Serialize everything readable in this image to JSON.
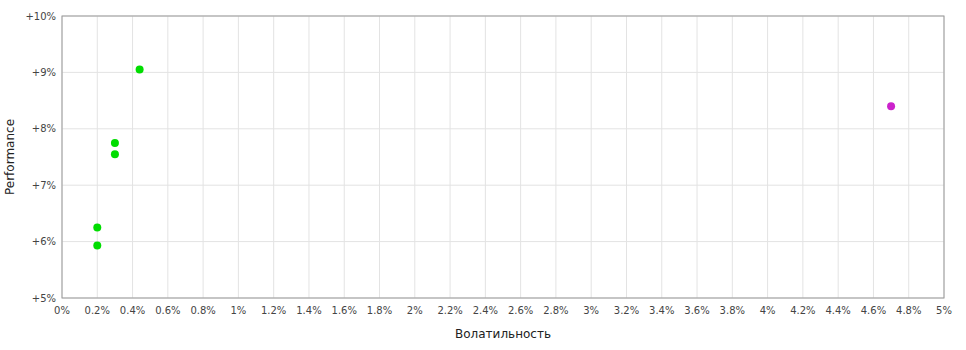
{
  "chart_data": {
    "type": "scatter",
    "xlabel": "Волатильность",
    "ylabel": "Performance",
    "xlim": [
      0.0,
      0.05
    ],
    "ylim": [
      0.05,
      0.1
    ],
    "xticks": [
      {
        "value": 0.0,
        "label": "0%"
      },
      {
        "value": 0.002,
        "label": "0.2%"
      },
      {
        "value": 0.004,
        "label": "0.4%"
      },
      {
        "value": 0.006,
        "label": "0.6%"
      },
      {
        "value": 0.008,
        "label": "0.8%"
      },
      {
        "value": 0.01,
        "label": "1%"
      },
      {
        "value": 0.012,
        "label": "1.2%"
      },
      {
        "value": 0.014,
        "label": "1.4%"
      },
      {
        "value": 0.016,
        "label": "1.6%"
      },
      {
        "value": 0.018,
        "label": "1.8%"
      },
      {
        "value": 0.02,
        "label": "2%"
      },
      {
        "value": 0.022,
        "label": "2.2%"
      },
      {
        "value": 0.024,
        "label": "2.4%"
      },
      {
        "value": 0.026,
        "label": "2.6%"
      },
      {
        "value": 0.028,
        "label": "2.8%"
      },
      {
        "value": 0.03,
        "label": "3%"
      },
      {
        "value": 0.032,
        "label": "3.2%"
      },
      {
        "value": 0.034,
        "label": "3.4%"
      },
      {
        "value": 0.036,
        "label": "3.6%"
      },
      {
        "value": 0.038,
        "label": "3.8%"
      },
      {
        "value": 0.04,
        "label": "4%"
      },
      {
        "value": 0.042,
        "label": "4.2%"
      },
      {
        "value": 0.044,
        "label": "4.4%"
      },
      {
        "value": 0.046,
        "label": "4.6%"
      },
      {
        "value": 0.048,
        "label": "4.8%"
      },
      {
        "value": 0.05,
        "label": "5%"
      }
    ],
    "yticks": [
      {
        "value": 0.05,
        "label": "+5%"
      },
      {
        "value": 0.06,
        "label": "+6%"
      },
      {
        "value": 0.07,
        "label": "+7%"
      },
      {
        "value": 0.08,
        "label": "+8%"
      },
      {
        "value": 0.09,
        "label": "+9%"
      },
      {
        "value": 0.1,
        "label": "+10%"
      }
    ],
    "grid": true,
    "series": [
      {
        "color": "#00dd00",
        "x": [
          0.0044,
          0.003,
          0.003,
          0.002,
          0.002
        ],
        "values": [
          0.0905,
          0.0775,
          0.0755,
          0.0625,
          0.0593
        ]
      },
      {
        "color": "#cc22cc",
        "x": [
          0.047
        ],
        "values": [
          0.084
        ]
      }
    ]
  }
}
